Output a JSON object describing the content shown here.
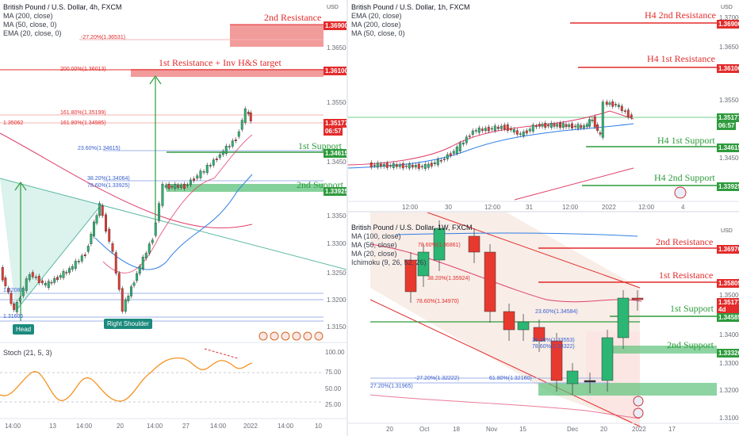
{
  "left_chart": {
    "title": "British Pound / U.S. Dollar, 4h, FXCM",
    "indicators": [
      "MA (200, close)",
      "MA (50, close, 0)",
      "EMA (20, close, 0)"
    ],
    "annotations": {
      "r2": "2nd Resistance",
      "r1": "1st Resistance + Inv H&S target",
      "s1": "1st Support",
      "s2": "2nd Support",
      "head": "Head",
      "shoulder": "Right Shoulder"
    },
    "fibs": {
      "f1": "-27.20%(1.36531)",
      "f2": "200.00%(1.36013)",
      "f3": "161.80%(1.35199)",
      "f4": "161.80%(1.34985)",
      "f5": "23.60%(1.34615)",
      "f6": "38.20%(1.34064)",
      "f7": "78.60%(1.33925)",
      "f8": "1.32087",
      "f9": "1.31606",
      "f10": "1.35062"
    },
    "price_tags": {
      "p1": "1.36900",
      "p2": "1.36100",
      "p3": "1.35177",
      "p3b": "06:57",
      "p4": "1.34615",
      "p5": "1.33925"
    },
    "axis": [
      "1.36500",
      "1.35500",
      "1.34500",
      "1.33500",
      "1.33000",
      "1.32500",
      "1.32000",
      "1.31500"
    ],
    "time_axis": [
      "14:00",
      "13",
      "14:00",
      "20",
      "14:00",
      "27",
      "14:00",
      "2022",
      "14:00",
      "10"
    ],
    "stoch_title": "Stoch (21, 5, 3)",
    "stoch_axis": [
      "100.00",
      "75.00",
      "50.00",
      "25.00"
    ],
    "usd": "USD"
  },
  "right_top_chart": {
    "title": "British Pound / U.S. Dollar, 1h, FXCM",
    "indicators": [
      "EMA (20, close)",
      "MA (200, close)",
      "MA (50, close, 0)"
    ],
    "annotations": {
      "r2": "H4 2nd Resistance",
      "r1": "H4 1st Resistance",
      "s1": "H4 1st Support",
      "s2": "H4 2nd Support"
    },
    "price_tags": {
      "p1": "1.36900",
      "p2": "1.36100",
      "p3": "1.35177",
      "p3b": "06:57",
      "p4": "1.34615",
      "p5": "1.33925"
    },
    "axis": [
      "1.37000",
      "1.36500",
      "1.35500",
      "1.34500"
    ],
    "time_axis": [
      "12:00",
      "30",
      "12:00",
      "31",
      "12:00",
      "2022",
      "12:00",
      "4"
    ],
    "usd": "USD"
  },
  "right_bottom_chart": {
    "title": "British Pound / U.S. Dollar, 1W, FXCM",
    "indicators": [
      "MA (100, close)",
      "MA (50, close)",
      "MA (20, close)",
      "Ichimoku (9, 26, 52, 26)"
    ],
    "annotations": {
      "r2": "2nd Resistance",
      "r1": "1st Resistance",
      "s1": "1st Support",
      "s2": "2nd Support"
    },
    "fibs": {
      "f1": "78.60%(1.36861)",
      "f2": "38.20%(1.35924)",
      "f3": "78.60%(1.34970)",
      "f4": "23.60%(1.34584)",
      "f5": "38.20%(1.33553)",
      "f6": "78.60%(1.33322)",
      "f7": "-27.20%(1.32222)",
      "f8": "61.80%(1.32160)",
      "f9": "27.20%(1.31965)"
    },
    "price_tags": {
      "p1": "1.36970",
      "p2": "1.35805",
      "p3": "1.35177",
      "p3b": "4d 21h",
      "p4": "1.34585",
      "p5": "1.33320"
    },
    "axis": [
      "1.35000",
      "1.34000",
      "1.33000",
      "1.32000",
      "1.31000"
    ],
    "time_axis": [
      "20",
      "Oct",
      "18",
      "Nov",
      "15",
      "Dec",
      "20",
      "2022",
      "17"
    ],
    "usd": "USD"
  }
}
